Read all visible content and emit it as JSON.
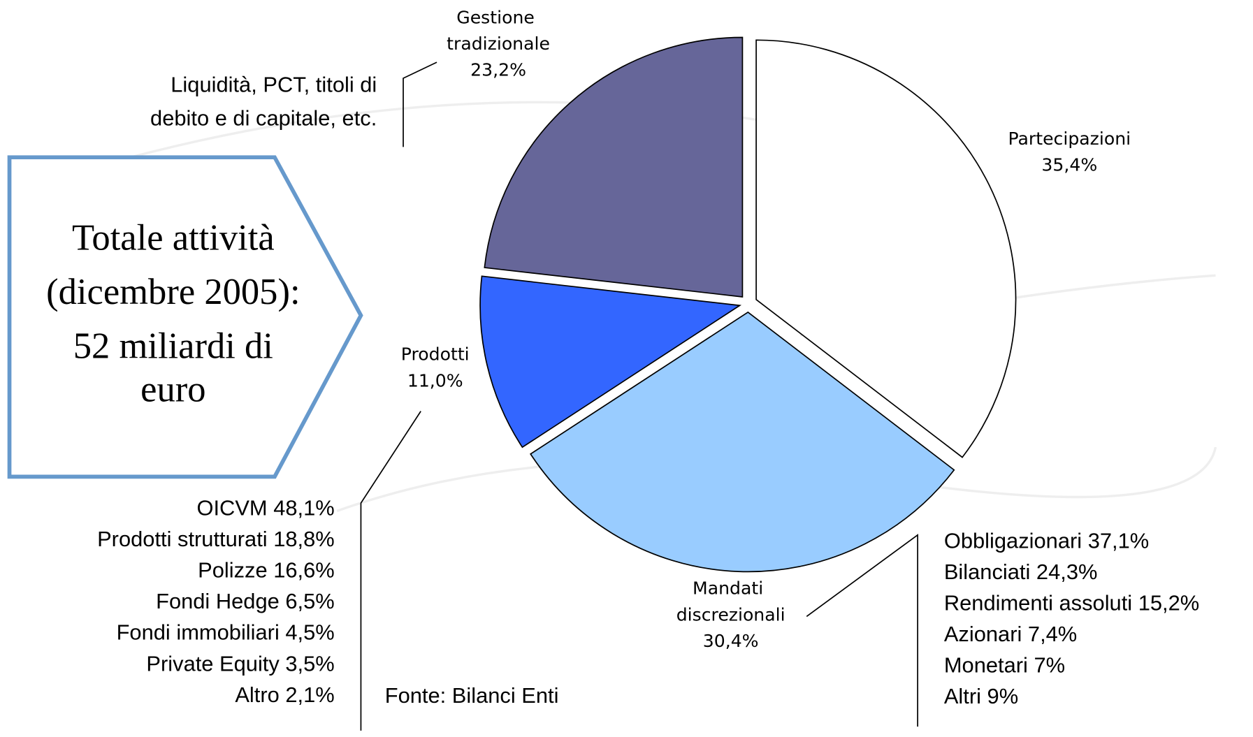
{
  "chart_data": {
    "type": "pie",
    "categories": [
      "Partecipazioni",
      "Mandati discrezionali",
      "Prodotti",
      "Gestione tradizionale"
    ],
    "values": [
      35.4,
      30.4,
      11.0,
      23.2
    ],
    "value_labels": [
      "35,4%",
      "30,4%",
      "11,0%",
      "23,2%"
    ],
    "colors": [
      "#ffffff",
      "#99ccff",
      "#3366ff",
      "#666699"
    ],
    "callout": [
      "Totale attività",
      "(dicembre 2005):",
      "52 miliardi di",
      "euro"
    ],
    "gestione_note": [
      "Liquidità, PCT, titoli di",
      "debito e di capitale, etc."
    ],
    "prodotti_breakdown": [
      "OICVM 48,1%",
      "Prodotti strutturati 18,8%",
      "Polizze 16,6%",
      "Fondi Hedge 6,5%",
      "Fondi immobiliari 4,5%",
      "Private Equity 3,5%",
      "Altro 2,1%"
    ],
    "mandati_breakdown": [
      "Obbligazionari 37,1%",
      "Bilanciati 24,3%",
      "Rendimenti assoluti 15,2%",
      "Azionari 7,4%",
      "Monetari 7%",
      "Altri 9%"
    ],
    "source": "Fonte: Bilanci Enti"
  }
}
